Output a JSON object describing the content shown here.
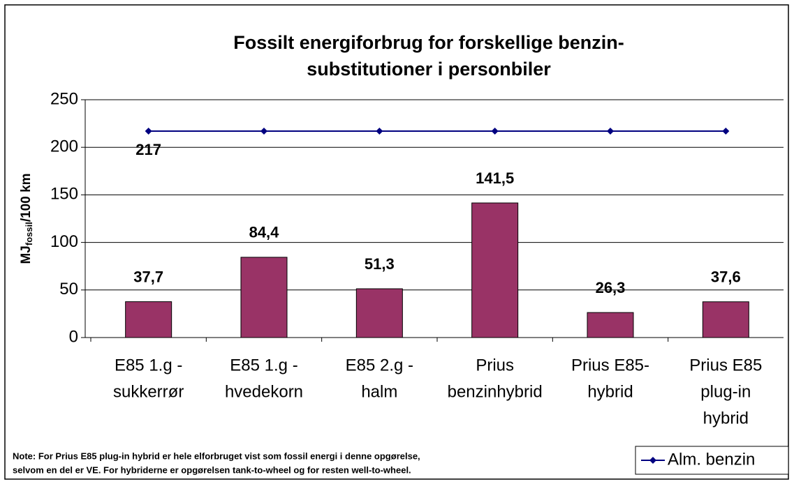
{
  "chart_data": {
    "type": "bar",
    "title": [
      "Fossilt energiforbrug for forskellige benzin-",
      "substitutioner i personbiler"
    ],
    "ylabel": [
      "MJ",
      "fossil",
      "/100 km"
    ],
    "categories": [
      [
        "E85 1.g -",
        "sukkerrør"
      ],
      [
        "E85 1.g -",
        "hvedekorn"
      ],
      [
        "E85 2.g -",
        "halm"
      ],
      [
        "Prius",
        "benzinhybrid"
      ],
      [
        "Prius E85-",
        "hybrid"
      ],
      [
        "Prius E85",
        "plug-in",
        "hybrid"
      ]
    ],
    "series": [
      {
        "type": "bar",
        "color": "#993366",
        "values": [
          37.7,
          84.4,
          51.3,
          141.5,
          26.3,
          37.6
        ],
        "value_labels": [
          "37,7",
          "84,4",
          "51,3",
          "141,5",
          "26,3",
          "37,6"
        ]
      },
      {
        "type": "line",
        "name": "Alm. benzin",
        "color": "#000080",
        "values": [
          217,
          217,
          217,
          217,
          217,
          217
        ],
        "value_labels": [
          "217",
          null,
          null,
          null,
          null,
          null
        ]
      }
    ],
    "ylim": [
      0,
      250
    ],
    "yticks": [
      0,
      50,
      100,
      150,
      200,
      250
    ],
    "grid": true,
    "legend": "bottom-right",
    "note": [
      "Note: For Prius E85 plug-in hybrid er hele elforbruget vist som fossil energi i denne opgørelse,",
      "selvom en del er VE. For hybriderne er opgørelsen tank-to-wheel og for resten well-to-wheel."
    ]
  }
}
